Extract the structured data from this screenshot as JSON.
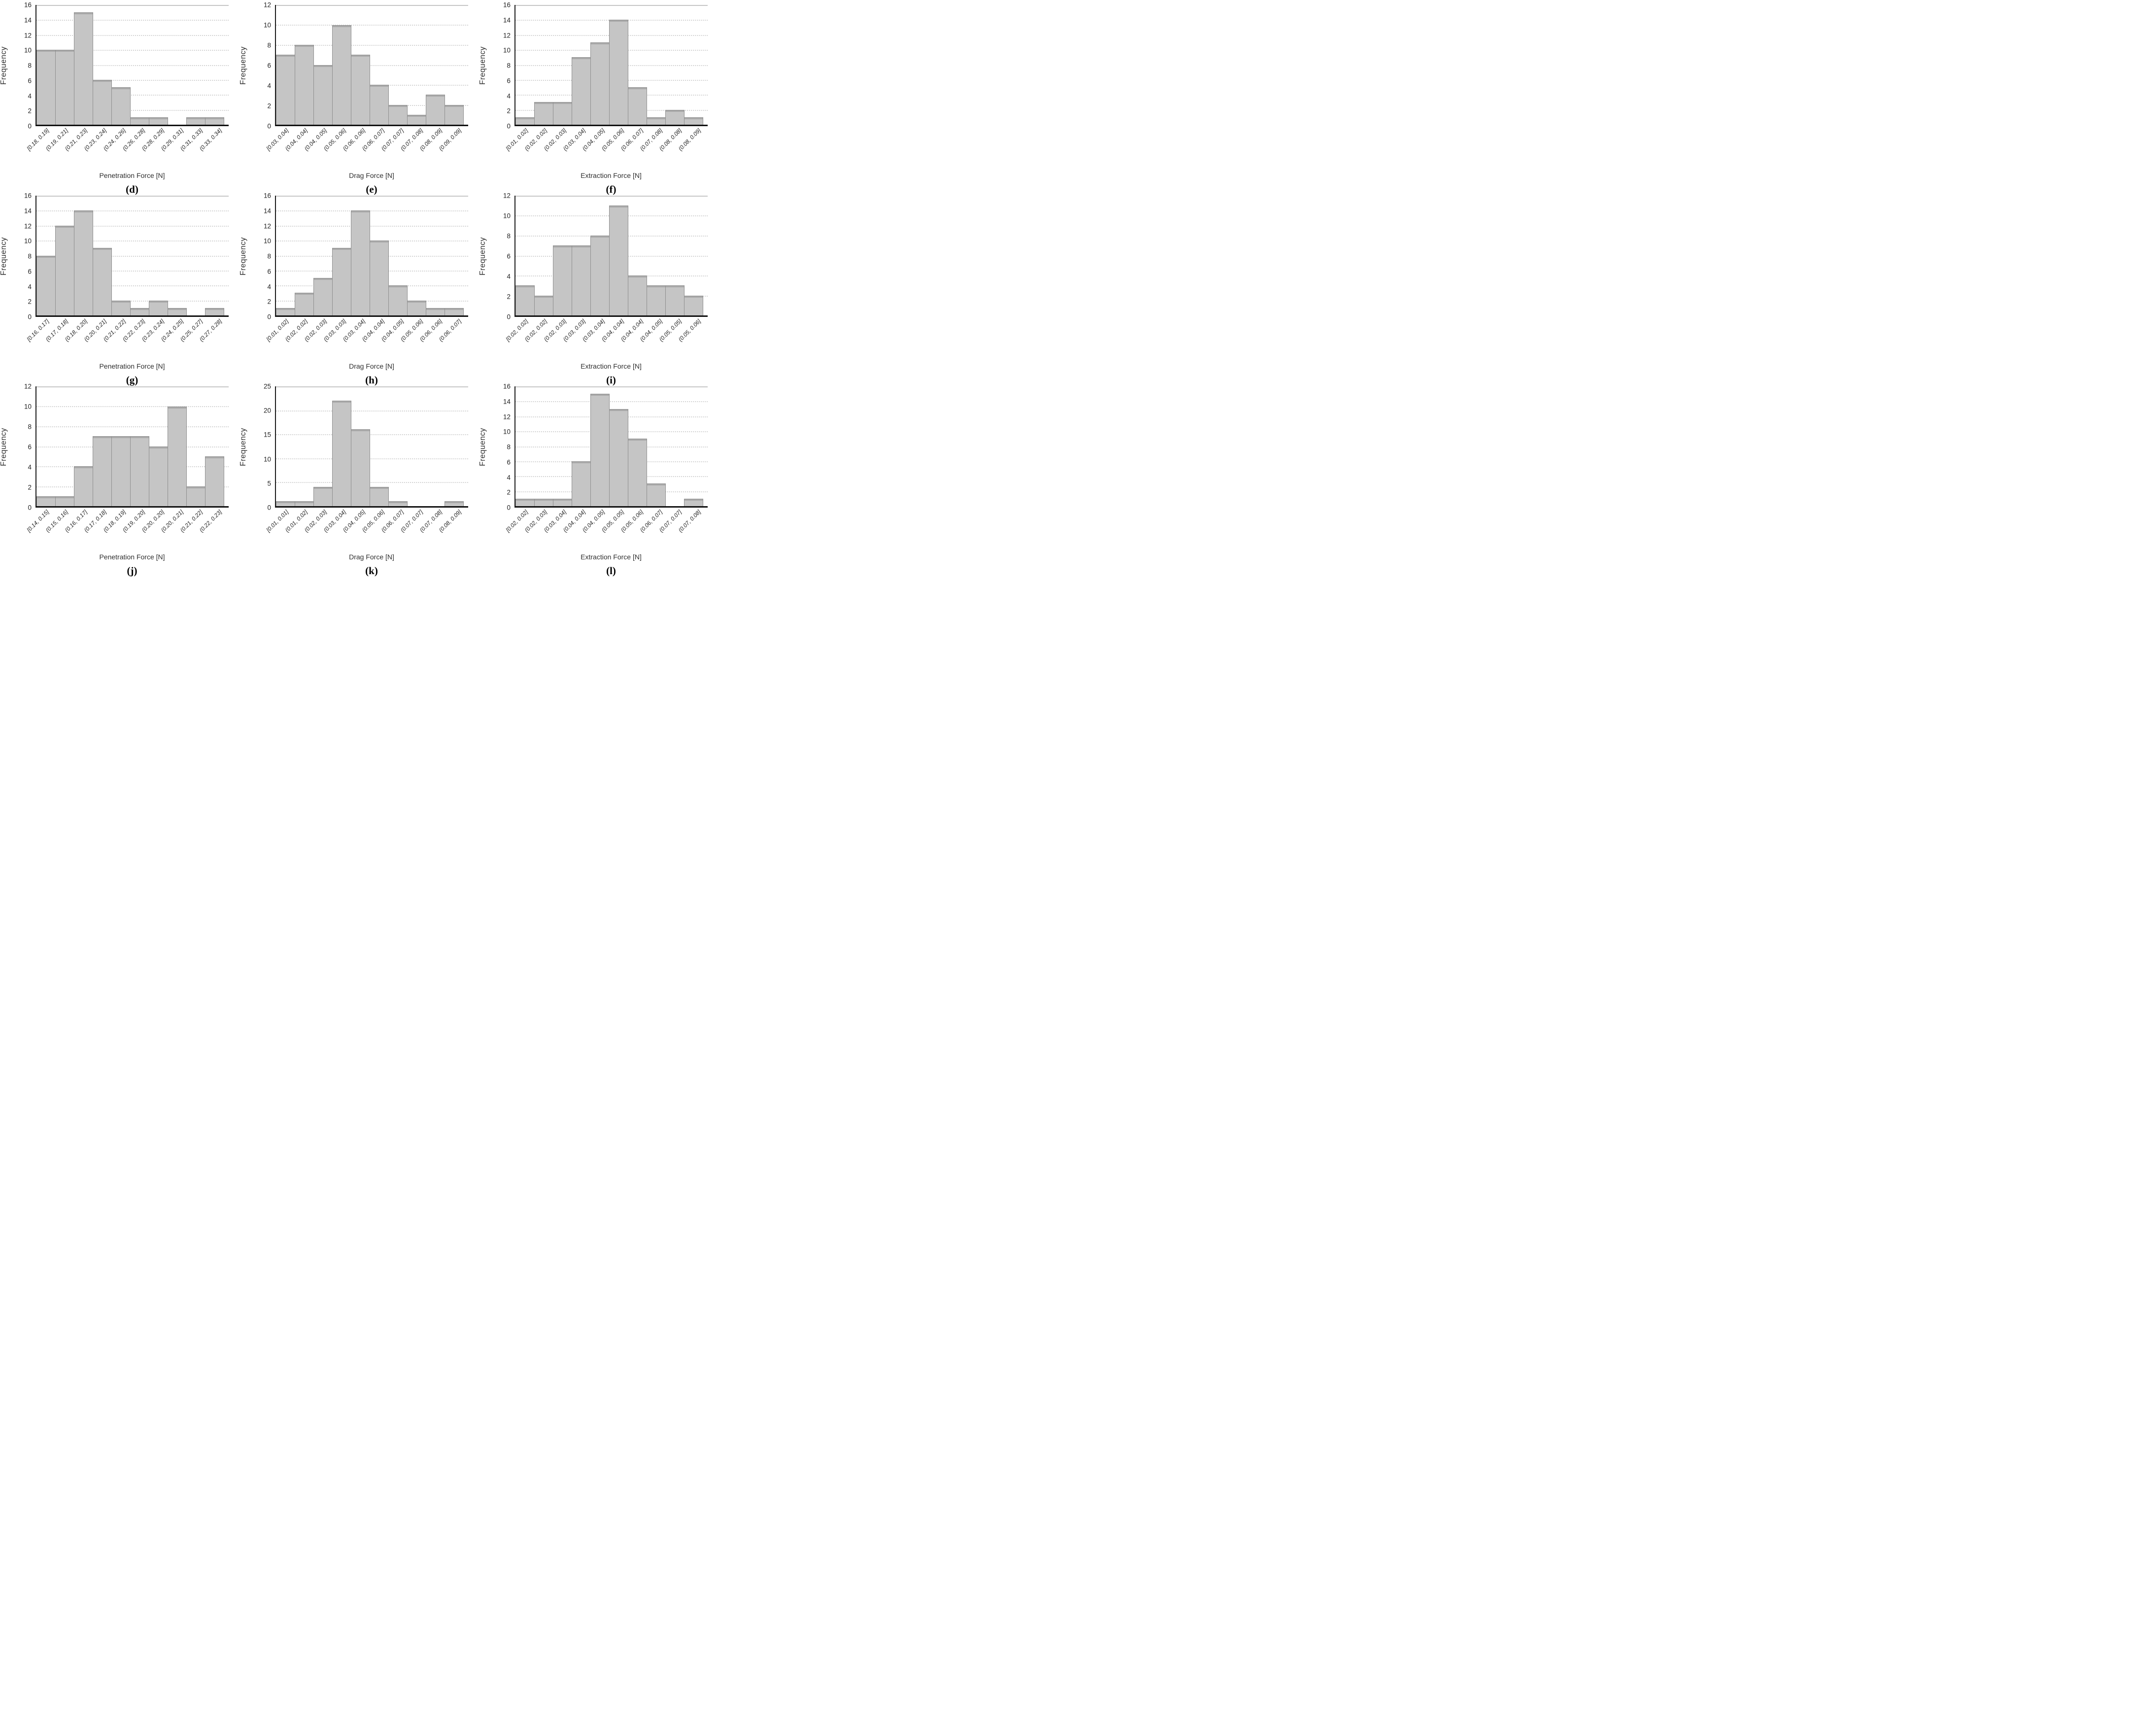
{
  "figure": {
    "background_color": "#ffffff",
    "bar_fill_color": "#c5c5c5",
    "bar_border_color": "#8f8f8f",
    "gridline_color": "#d3d3d3",
    "axis_color": "#111111"
  },
  "chart_data": [
    {
      "type": "bar",
      "title": "(d)",
      "xlabel": "Penetration Force [N]",
      "ylabel": "Frequency",
      "ylim": [
        0,
        16
      ],
      "ytick_step": 2,
      "grid": "horizontal-dotted",
      "legend": "none",
      "categories": [
        "[0.18, 0.19]",
        "(0.19, 0.21]",
        "(0.21, 0.23]",
        "(0.23, 0.24]",
        "(0.24, 0.26]",
        "(0.26, 0.28]",
        "(0.28, 0.29]",
        "(0.29, 0.31]",
        "(0.31, 0.33]",
        "(0.33, 0.34]"
      ],
      "values": [
        10,
        10,
        15,
        6,
        5,
        1,
        1,
        0,
        1,
        1
      ]
    },
    {
      "type": "bar",
      "title": "(e)",
      "xlabel": "Drag Force [N]",
      "ylabel": "Frequency",
      "ylim": [
        0,
        12
      ],
      "ytick_step": 2,
      "grid": "horizontal-dotted",
      "legend": "none",
      "categories": [
        "[0.03, 0.04]",
        "(0.04, 0.04]",
        "(0.04, 0.05]",
        "(0.05, 0.06]",
        "(0.06, 0.06]",
        "(0.06, 0.07]",
        "(0.07, 0.07]",
        "(0.07, 0.08]",
        "(0.08, 0.09]",
        "(0.09, 0.09]"
      ],
      "values": [
        7,
        8,
        6,
        10,
        7,
        4,
        2,
        1,
        3,
        2
      ]
    },
    {
      "type": "bar",
      "title": "(f)",
      "xlabel": "Extraction Force [N]",
      "ylabel": "Frequency",
      "ylim": [
        0,
        16
      ],
      "ytick_step": 2,
      "grid": "horizontal-dotted",
      "legend": "none",
      "categories": [
        "[0.01, 0.02]",
        "(0.02, 0.02]",
        "(0.02, 0.03]",
        "(0.03, 0.04]",
        "(0.04, 0.05]",
        "(0.05, 0.06]",
        "(0.06, 0.07]",
        "(0.07, 0.08]",
        "(0.08, 0.08]",
        "(0.08, 0.09]"
      ],
      "values": [
        1,
        3,
        3,
        9,
        11,
        14,
        5,
        1,
        2,
        1
      ]
    },
    {
      "type": "bar",
      "title": "(g)",
      "xlabel": "Penetration Force [N]",
      "ylabel": "Frequency",
      "ylim": [
        0,
        16
      ],
      "ytick_step": 2,
      "grid": "horizontal-dotted",
      "legend": "none",
      "categories": [
        "[0.16, 0.17]",
        "(0.17, 0.18]",
        "(0.18, 0.20]",
        "(0.20, 0.21]",
        "(0.21, 0.22]",
        "(0.22, 0.23]",
        "(0.23, 0.24]",
        "(0.24, 0.25]",
        "(0.25, 0.27]",
        "(0.27, 0.28]"
      ],
      "values": [
        8,
        12,
        14,
        9,
        2,
        1,
        2,
        1,
        0,
        1
      ]
    },
    {
      "type": "bar",
      "title": "(h)",
      "xlabel": "Drag Force [N]",
      "ylabel": "Frequency",
      "ylim": [
        0,
        16
      ],
      "ytick_step": 2,
      "grid": "horizontal-dotted",
      "legend": "none",
      "categories": [
        "[0.01, 0.02]",
        "(0.02, 0.02]",
        "(0.02, 0.03]",
        "(0.03, 0.03]",
        "(0.03, 0.04]",
        "(0.04, 0.04]",
        "(0.04, 0.05]",
        "(0.05, 0.06]",
        "(0.06, 0.06]",
        "(0.06, 0.07]"
      ],
      "values": [
        1,
        3,
        5,
        9,
        14,
        10,
        4,
        2,
        1,
        1
      ]
    },
    {
      "type": "bar",
      "title": "(i)",
      "xlabel": "Extraction Force [N]",
      "ylabel": "Frequency",
      "ylim": [
        0,
        12
      ],
      "ytick_step": 2,
      "grid": "horizontal-dotted",
      "legend": "none",
      "categories": [
        "[0.02, 0.02]",
        "(0.02, 0.02]",
        "(0.02, 0.03]",
        "(0.03, 0.03]",
        "(0.03, 0.04]",
        "(0.04, 0.04]",
        "(0.04, 0.04]",
        "(0.04, 0.05]",
        "(0.05, 0.05]",
        "(0.05, 0.06]"
      ],
      "values": [
        3,
        2,
        7,
        7,
        8,
        11,
        4,
        3,
        3,
        2
      ]
    },
    {
      "type": "bar",
      "title": "(j)",
      "xlabel": "Penetration Force [N]",
      "ylabel": "Frequency",
      "ylim": [
        0,
        12
      ],
      "ytick_step": 2,
      "grid": "horizontal-dotted",
      "legend": "none",
      "categories": [
        "[0.14, 0.15]",
        "(0.15, 0.16]",
        "(0.16, 0.17]",
        "(0.17, 0.18]",
        "(0.18, 0.19]",
        "(0.19, 0.20]",
        "(0.20, 0.20]",
        "(0.20, 0.21]",
        "(0.21, 0.22]",
        "(0.22, 0.23]"
      ],
      "values": [
        1,
        1,
        4,
        7,
        7,
        7,
        6,
        10,
        2,
        5
      ]
    },
    {
      "type": "bar",
      "title": "(k)",
      "xlabel": "Drag Force [N]",
      "ylabel": "Frequency",
      "ylim": [
        0,
        25
      ],
      "ytick_step": 5,
      "grid": "horizontal-dotted",
      "legend": "none",
      "categories": [
        "[0.01, 0.01]",
        "(0.01, 0.02]",
        "(0.02, 0.03]",
        "(0.03, 0.04]",
        "(0.04, 0.05]",
        "(0.05, 0.06]",
        "(0.06, 0.07]",
        "(0.07, 0.07]",
        "(0.07, 0.08]",
        "(0.08, 0.09]"
      ],
      "values": [
        1,
        1,
        4,
        22,
        16,
        4,
        1,
        0,
        0,
        1
      ]
    },
    {
      "type": "bar",
      "title": "(l)",
      "xlabel": "Extraction Force [N]",
      "ylabel": "Frequency",
      "ylim": [
        0,
        16
      ],
      "ytick_step": 2,
      "grid": "horizontal-dotted",
      "legend": "none",
      "categories": [
        "[0.02, 0.02]",
        "(0.02, 0.03]",
        "(0.03, 0.04]",
        "(0.04, 0.04]",
        "(0.04, 0.05]",
        "(0.05, 0.05]",
        "(0.05, 0.06]",
        "(0.06, 0.07]",
        "(0.07, 0.07]",
        "(0.07, 0.08]"
      ],
      "values": [
        1,
        1,
        1,
        6,
        15,
        13,
        9,
        3,
        0,
        1
      ]
    }
  ]
}
